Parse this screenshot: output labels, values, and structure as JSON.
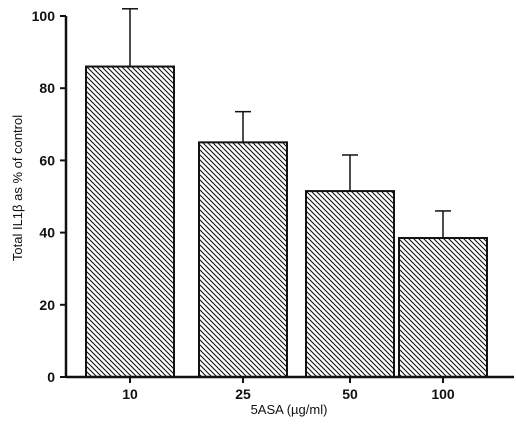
{
  "chart_data": {
    "type": "bar",
    "categories": [
      "10",
      "25",
      "50",
      "100"
    ],
    "values": [
      86,
      65,
      51.5,
      38.5
    ],
    "errors": [
      16,
      8.5,
      10,
      7.5
    ],
    "xlabel": "5ASA (µg/ml)",
    "ylabel": "Total IL1β as % of control",
    "ylim": [
      0,
      100
    ],
    "yticks": [
      0,
      20,
      40,
      60,
      80,
      100
    ],
    "grid": false,
    "legend": "none",
    "bar_fill": "diagonal-hatch",
    "colors": {
      "ink": "#111111",
      "background": "#ffffff"
    }
  }
}
